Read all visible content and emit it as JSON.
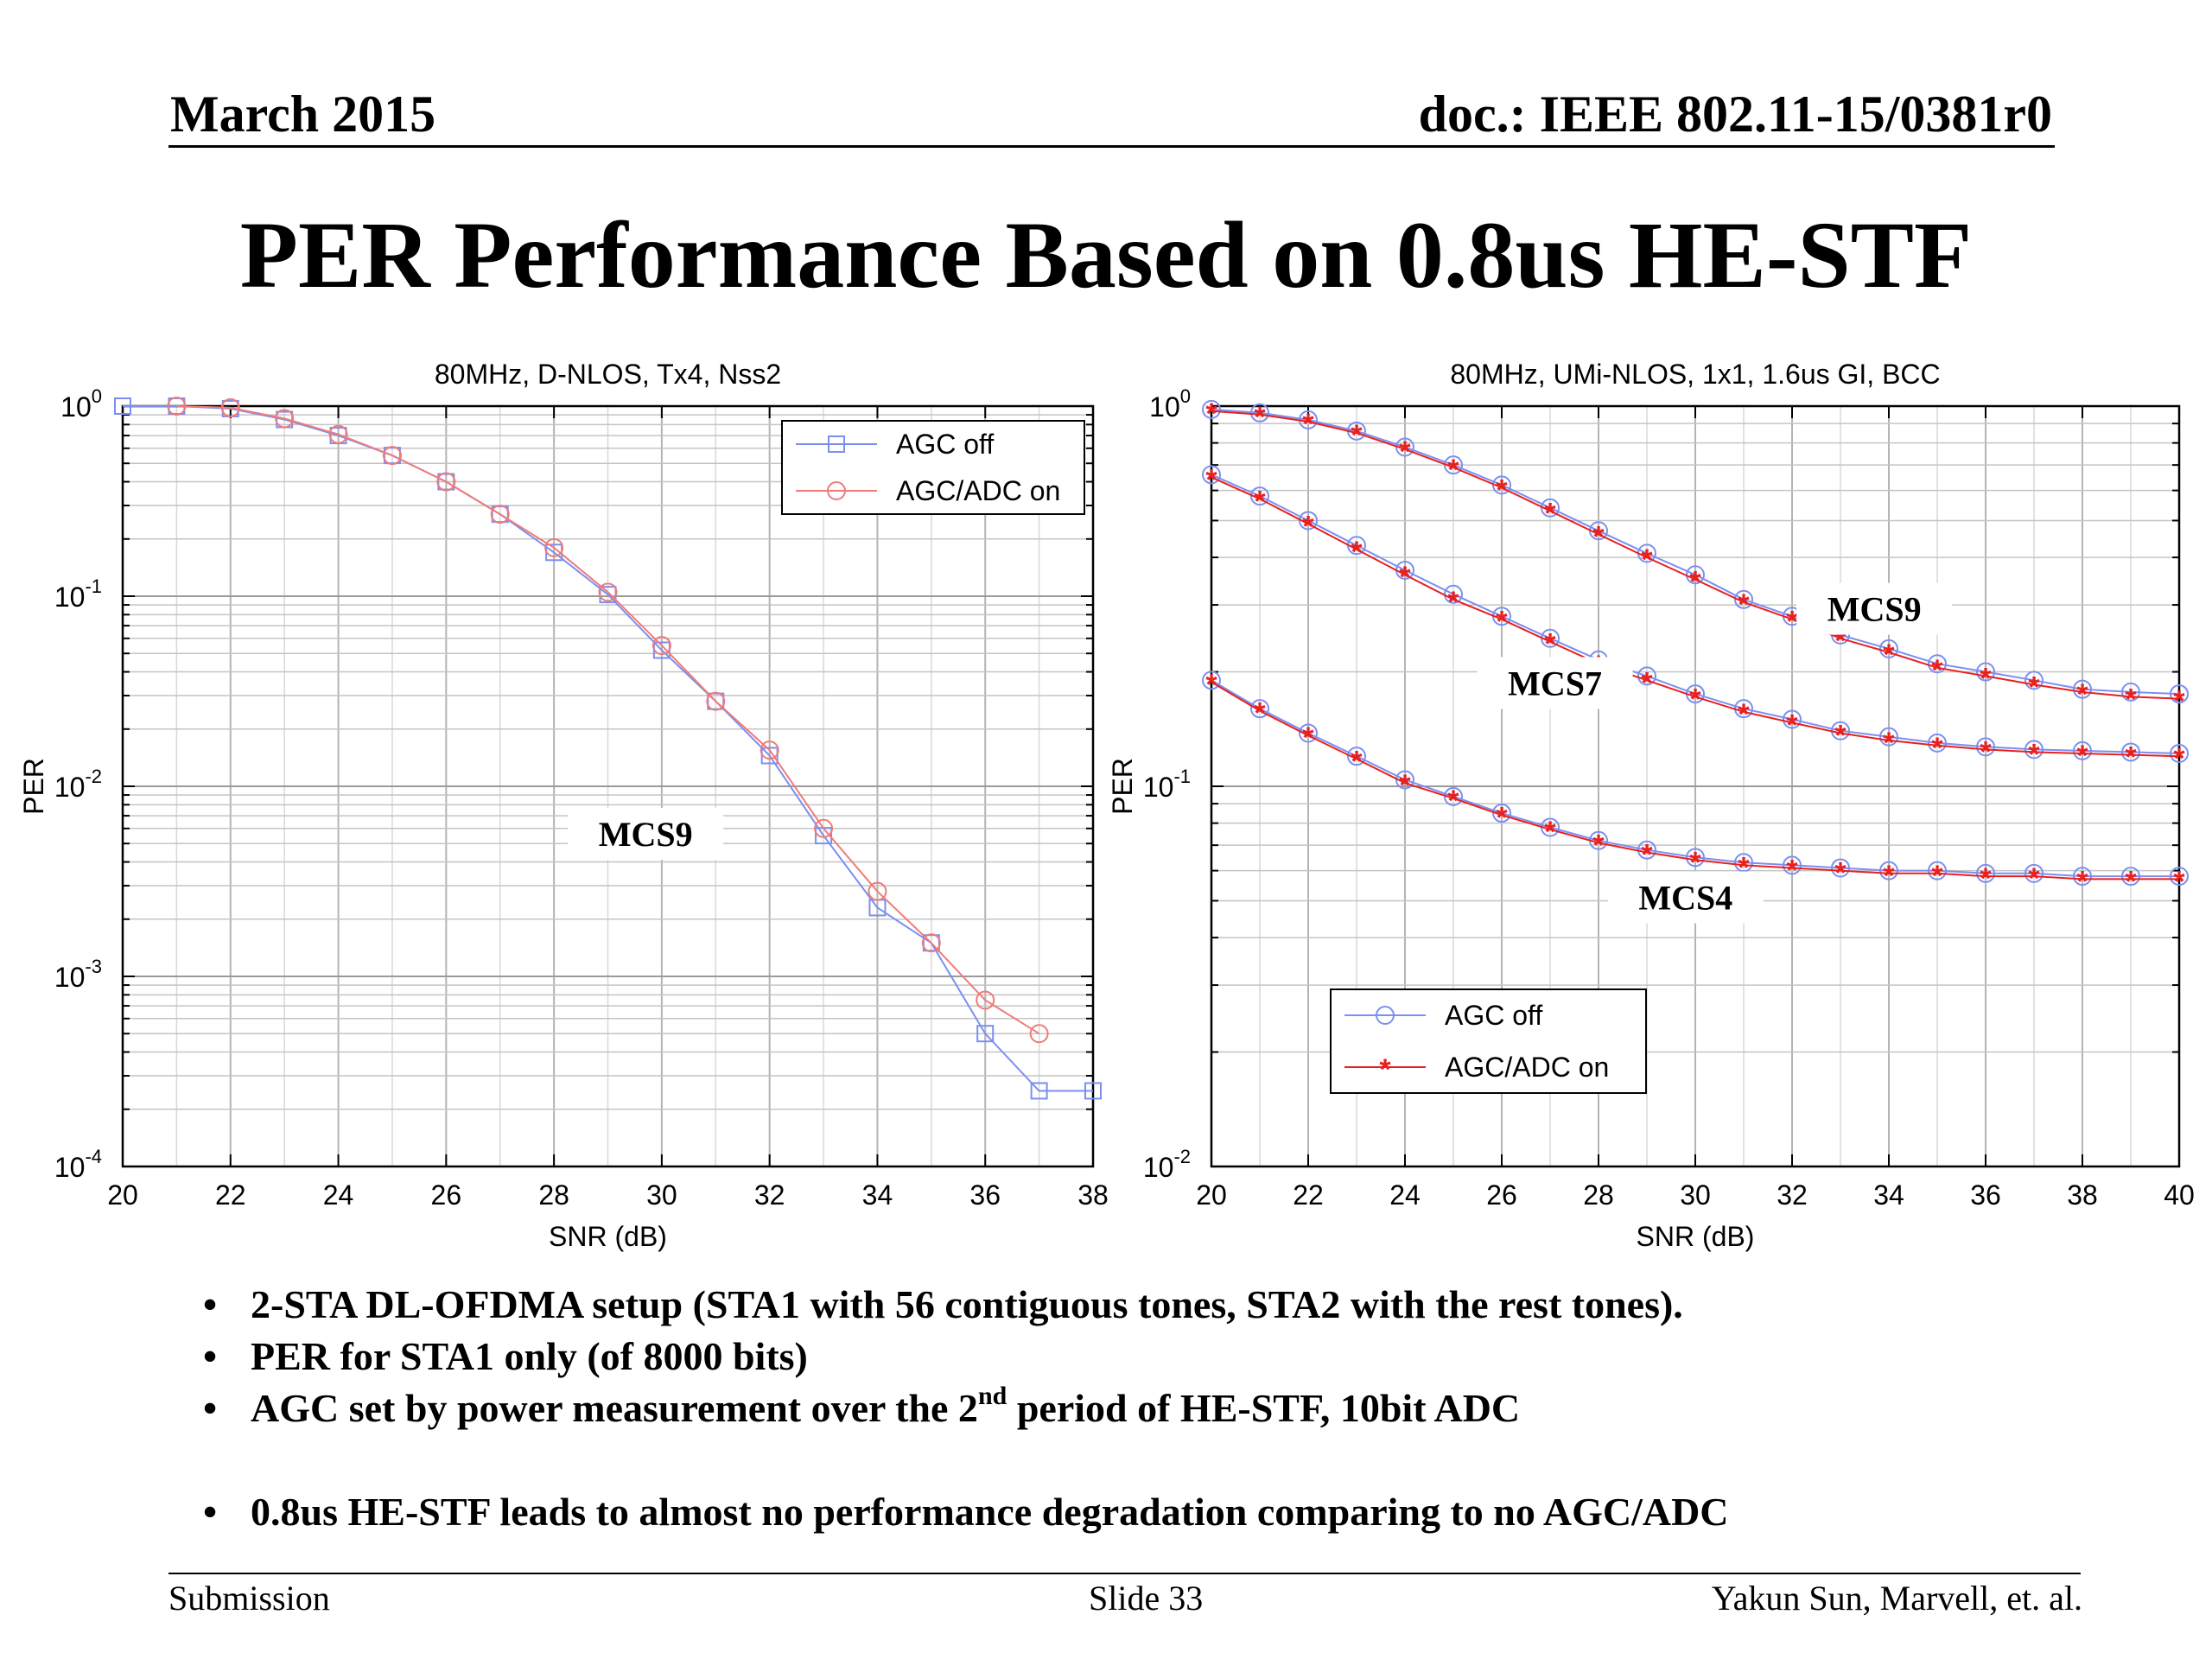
{
  "header": {
    "date": "March 2015",
    "doc": "doc.: IEEE 802.11-15/0381r0"
  },
  "title": "PER Performance Based on 0.8us HE-STF",
  "chart_data": [
    {
      "type": "line",
      "title": "80MHz, D-NLOS, Tx4, Nss2",
      "xlabel": "SNR (dB)",
      "ylabel": "PER",
      "xlim": [
        20,
        38
      ],
      "ylim": [
        0.0001,
        1
      ],
      "yscale": "log",
      "grid": true,
      "legend": "top-right",
      "xticks": [
        20,
        22,
        24,
        26,
        28,
        30,
        32,
        34,
        36,
        38
      ],
      "yticks": [
        {
          "base": "10",
          "exp": "0"
        },
        {
          "base": "10",
          "exp": "-1"
        },
        {
          "base": "10",
          "exp": "-2"
        },
        {
          "base": "10",
          "exp": "-3"
        },
        {
          "base": "10",
          "exp": "-4"
        }
      ],
      "annotations": [
        {
          "text": "MCS9",
          "x": 29.7,
          "y": 0.0055
        }
      ],
      "series": [
        {
          "name": "AGC off",
          "color": "#7b8ff0",
          "marker": "square",
          "x": [
            20,
            21,
            22,
            23,
            24,
            25,
            26,
            27,
            28,
            29,
            30,
            31,
            32,
            33,
            34,
            35,
            36,
            37,
            38
          ],
          "y": [
            1,
            1,
            0.97,
            0.85,
            0.7,
            0.55,
            0.4,
            0.27,
            0.17,
            0.102,
            0.052,
            0.028,
            0.0145,
            0.0055,
            0.0023,
            0.0015,
            0.0005,
            0.00025,
            0.00025
          ]
        },
        {
          "name": "AGC/ADC on",
          "color": "#ef7b7b",
          "marker": "circle",
          "x": [
            21,
            22,
            23,
            24,
            25,
            26,
            27,
            28,
            29,
            30,
            31,
            32,
            33,
            34,
            35,
            36,
            37
          ],
          "y": [
            1,
            0.98,
            0.86,
            0.71,
            0.55,
            0.4,
            0.27,
            0.18,
            0.105,
            0.055,
            0.028,
            0.0155,
            0.006,
            0.0028,
            0.0015,
            0.00075,
            0.0005
          ]
        }
      ]
    },
    {
      "type": "line",
      "title": "80MHz, UMi-NLOS, 1x1, 1.6us GI, BCC",
      "xlabel": "SNR (dB)",
      "ylabel": "PER",
      "xlim": [
        20,
        40
      ],
      "ylim": [
        0.01,
        1
      ],
      "yscale": "log",
      "grid": true,
      "legend": "bottom-left",
      "xticks": [
        20,
        22,
        24,
        26,
        28,
        30,
        32,
        34,
        36,
        38,
        40
      ],
      "yticks": [
        {
          "base": "10",
          "exp": "0"
        },
        {
          "base": "10",
          "exp": "-1"
        },
        {
          "base": "10",
          "exp": "-2"
        }
      ],
      "annotations": [
        {
          "text": "MCS9",
          "x": 33.7,
          "y": 0.29
        },
        {
          "text": "MCS7",
          "x": 27.1,
          "y": 0.185
        },
        {
          "text": "MCS4",
          "x": 29.8,
          "y": 0.0505
        }
      ],
      "series": [
        {
          "name": "AGC off",
          "color": "#7b8ff0",
          "marker": "circle",
          "x": [
            20,
            21,
            22,
            23,
            24,
            25,
            26,
            27,
            28,
            29,
            30,
            31,
            32,
            33,
            34,
            35,
            36,
            37,
            38,
            39,
            40
          ],
          "y": [
            0.98,
            0.96,
            0.92,
            0.86,
            0.78,
            0.7,
            0.62,
            0.54,
            0.47,
            0.41,
            0.36,
            0.31,
            0.28,
            0.25,
            0.23,
            0.21,
            0.2,
            0.19,
            0.18,
            0.177,
            0.175
          ]
        },
        {
          "name": "AGC/ADC on",
          "color": "#e82020",
          "marker": "star",
          "x": [
            20,
            21,
            22,
            23,
            24,
            25,
            26,
            27,
            28,
            29,
            30,
            31,
            32,
            33,
            34,
            35,
            36,
            37,
            38,
            39,
            40
          ],
          "y": [
            0.97,
            0.95,
            0.91,
            0.85,
            0.77,
            0.69,
            0.61,
            0.53,
            0.46,
            0.4,
            0.35,
            0.305,
            0.275,
            0.245,
            0.225,
            0.205,
            0.195,
            0.185,
            0.177,
            0.172,
            0.17
          ]
        },
        {
          "name": "",
          "color": "#7b8ff0",
          "marker": "circle",
          "x": [
            20,
            21,
            22,
            23,
            24,
            25,
            26,
            27,
            28,
            29,
            30,
            31,
            32,
            33,
            34,
            35,
            36,
            37,
            38,
            39,
            40
          ],
          "y": [
            0.66,
            0.58,
            0.5,
            0.43,
            0.37,
            0.32,
            0.28,
            0.245,
            0.215,
            0.195,
            0.175,
            0.16,
            0.15,
            0.14,
            0.135,
            0.13,
            0.127,
            0.125,
            0.124,
            0.123,
            0.122
          ]
        },
        {
          "name": "",
          "color": "#e82020",
          "marker": "star",
          "x": [
            20,
            21,
            22,
            23,
            24,
            25,
            26,
            27,
            28,
            29,
            30,
            31,
            32,
            33,
            34,
            35,
            36,
            37,
            38,
            39,
            40
          ],
          "y": [
            0.65,
            0.57,
            0.49,
            0.42,
            0.36,
            0.31,
            0.275,
            0.24,
            0.21,
            0.19,
            0.172,
            0.157,
            0.147,
            0.138,
            0.132,
            0.128,
            0.125,
            0.123,
            0.122,
            0.121,
            0.12
          ]
        },
        {
          "name": "",
          "color": "#7b8ff0",
          "marker": "circle",
          "x": [
            20,
            21,
            22,
            23,
            24,
            25,
            26,
            27,
            28,
            29,
            30,
            31,
            32,
            33,
            34,
            35,
            36,
            37,
            38,
            39,
            40
          ],
          "y": [
            0.19,
            0.16,
            0.138,
            0.12,
            0.104,
            0.094,
            0.085,
            0.078,
            0.072,
            0.068,
            0.065,
            0.063,
            0.062,
            0.061,
            0.06,
            0.06,
            0.059,
            0.059,
            0.058,
            0.058,
            0.058
          ]
        },
        {
          "name": "",
          "color": "#e82020",
          "marker": "star",
          "x": [
            20,
            21,
            22,
            23,
            24,
            25,
            26,
            27,
            28,
            29,
            30,
            31,
            32,
            33,
            34,
            35,
            36,
            37,
            38,
            39,
            40
          ],
          "y": [
            0.188,
            0.158,
            0.136,
            0.118,
            0.102,
            0.093,
            0.084,
            0.077,
            0.071,
            0.067,
            0.064,
            0.062,
            0.061,
            0.06,
            0.059,
            0.059,
            0.058,
            0.058,
            0.057,
            0.057,
            0.057
          ]
        }
      ]
    }
  ],
  "bullets": [
    {
      "text": "2-STA DL-OFDMA setup (STA1 with 56 contiguous tones, STA2 with the rest tones)."
    },
    {
      "text": "PER for STA1 only (of 8000 bits)"
    },
    {
      "pre": "AGC set by power measurement over the 2",
      "sup": "nd",
      "post": " period of HE-STF, 10bit ADC"
    },
    {
      "text": "0.8us HE-STF leads to almost no performance degradation comparing to no AGC/ADC"
    }
  ],
  "footer": {
    "left": "Submission",
    "center": "Slide 33",
    "right": "Yakun Sun,  Marvell, et. al."
  }
}
